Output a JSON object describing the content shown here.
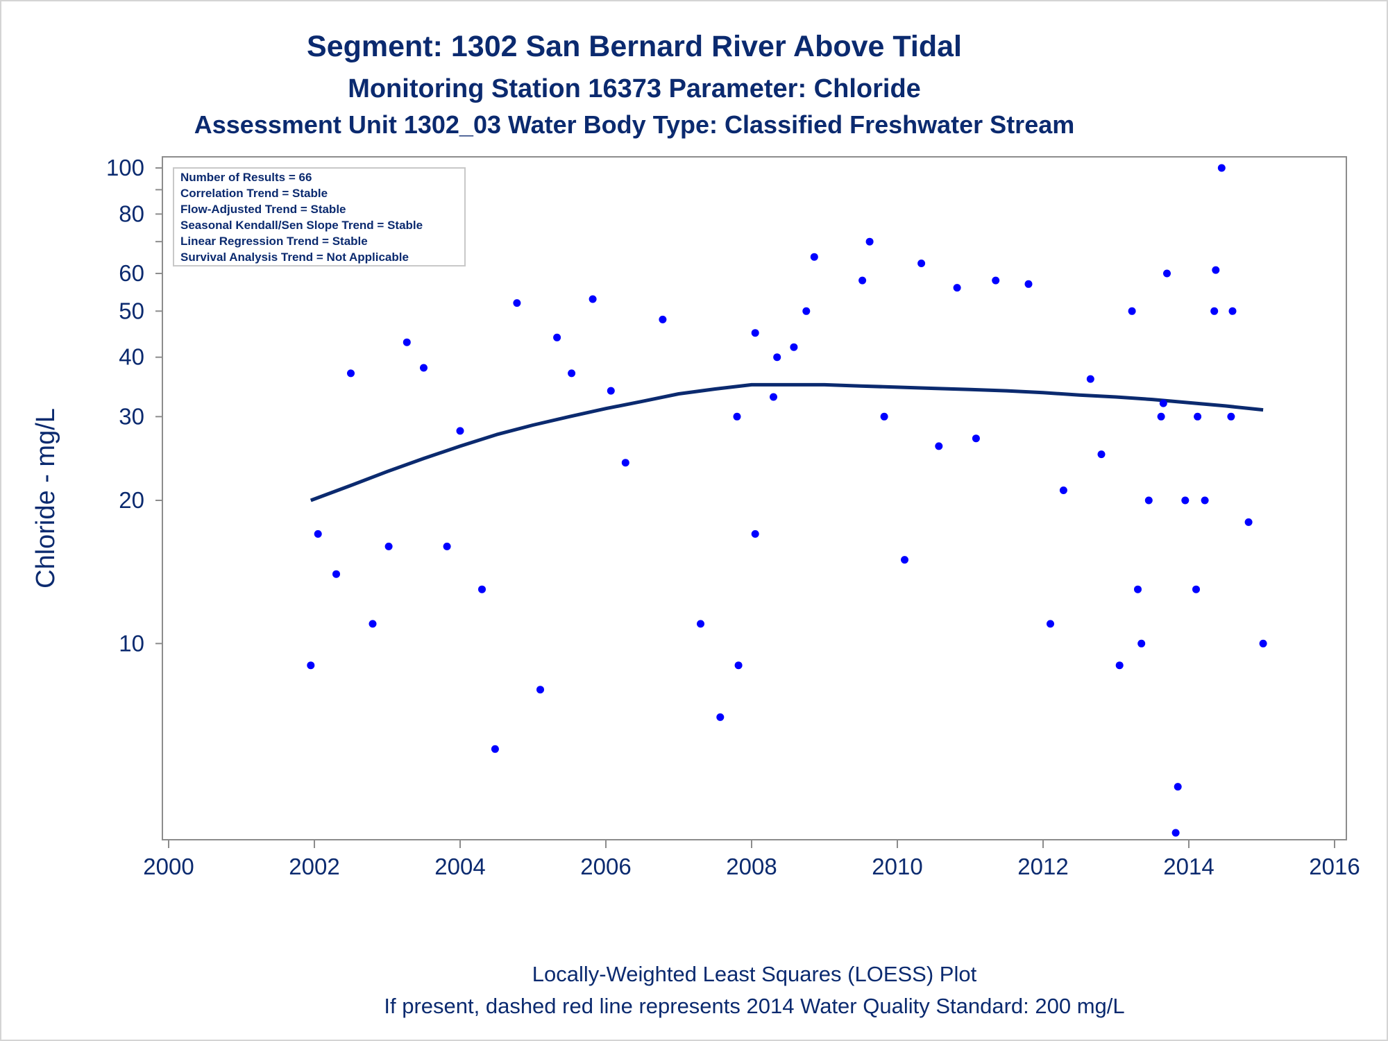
{
  "titles": {
    "line1": "Segment: 1302  San Bernard River Above Tidal",
    "line2": "Monitoring Station 16373 Parameter: Chloride",
    "line3": "Assessment Unit 1302_03   Water Body Type: Classified Freshwater Stream"
  },
  "footnotes": {
    "line1": "Locally-Weighted Least Squares (LOESS) Plot",
    "line2": "If present, dashed red line represents 2014 Water Quality Standard: 200    mg/L"
  },
  "legend_box": [
    "Number of Results = 66",
    "Correlation Trend = Stable",
    "Flow-Adjusted Trend = Stable",
    "Seasonal Kendall/Sen Slope Trend = Stable",
    "Linear Regression Trend = Stable",
    "Survival Analysis Trend = Not Applicable"
  ],
  "colors": {
    "text": "#0b2a6f",
    "points": "#0000ff",
    "loess": "#0b2a6f",
    "frame": "#8c8c8c"
  },
  "chart_data": {
    "type": "scatter",
    "xlabel": "",
    "ylabel": "Chloride - mg/L",
    "xlim": [
      2000,
      2016
    ],
    "ylim": [
      4,
      100
    ],
    "yscale": "log",
    "x_ticks": [
      2000,
      2002,
      2004,
      2006,
      2008,
      2010,
      2012,
      2014,
      2016
    ],
    "y_ticks": [
      10,
      20,
      30,
      40,
      50,
      60,
      80,
      100
    ],
    "y_minor_ticks": [
      70,
      90
    ],
    "grid": false,
    "series": [
      {
        "points": [
          [
            2001.95,
            9
          ],
          [
            2002.05,
            17
          ],
          [
            2002.3,
            14
          ],
          [
            2002.5,
            37
          ],
          [
            2002.8,
            11
          ],
          [
            2003.02,
            16
          ],
          [
            2003.27,
            43
          ],
          [
            2003.5,
            38
          ],
          [
            2003.82,
            16
          ],
          [
            2004.0,
            28
          ],
          [
            2004.3,
            13
          ],
          [
            2004.48,
            6
          ],
          [
            2004.78,
            52
          ],
          [
            2005.1,
            8
          ],
          [
            2005.33,
            44
          ],
          [
            2005.53,
            37
          ],
          [
            2005.82,
            53
          ],
          [
            2006.07,
            34
          ],
          [
            2006.27,
            24
          ],
          [
            2006.78,
            48
          ],
          [
            2007.3,
            11
          ],
          [
            2007.57,
            7
          ],
          [
            2007.8,
            30
          ],
          [
            2007.82,
            9
          ],
          [
            2008.05,
            45
          ],
          [
            2008.05,
            17
          ],
          [
            2008.3,
            33
          ],
          [
            2008.35,
            40
          ],
          [
            2008.58,
            42
          ],
          [
            2008.75,
            50
          ],
          [
            2008.86,
            65
          ],
          [
            2009.52,
            58
          ],
          [
            2009.62,
            70
          ],
          [
            2009.82,
            30
          ],
          [
            2010.1,
            15
          ],
          [
            2010.33,
            63
          ],
          [
            2010.57,
            26
          ],
          [
            2010.82,
            56
          ],
          [
            2011.08,
            27
          ],
          [
            2011.35,
            58
          ],
          [
            2011.8,
            57
          ],
          [
            2012.1,
            11
          ],
          [
            2012.28,
            21
          ],
          [
            2012.65,
            36
          ],
          [
            2012.8,
            25
          ],
          [
            2013.05,
            9
          ],
          [
            2013.22,
            50
          ],
          [
            2013.3,
            13
          ],
          [
            2013.35,
            10
          ],
          [
            2013.45,
            20
          ],
          [
            2013.62,
            30
          ],
          [
            2013.65,
            32
          ],
          [
            2013.7,
            60
          ],
          [
            2013.82,
            4
          ],
          [
            2013.85,
            5
          ],
          [
            2013.95,
            20
          ],
          [
            2014.1,
            13
          ],
          [
            2014.12,
            30
          ],
          [
            2014.22,
            20
          ],
          [
            2014.35,
            50
          ],
          [
            2014.37,
            61
          ],
          [
            2014.45,
            100
          ],
          [
            2014.58,
            30
          ],
          [
            2014.6,
            50
          ],
          [
            2014.82,
            18
          ],
          [
            2015.02,
            10
          ]
        ]
      }
    ],
    "loess": {
      "x": [
        2001.95,
        2002.5,
        2003.0,
        2003.5,
        2004.0,
        2004.5,
        2005.0,
        2005.5,
        2006.0,
        2006.5,
        2007.0,
        2007.5,
        2008.0,
        2008.5,
        2009.0,
        2009.5,
        2010.0,
        2010.5,
        2011.0,
        2011.5,
        2012.0,
        2012.5,
        2013.0,
        2013.5,
        2014.0,
        2014.5,
        2015.02
      ],
      "y": [
        20.0,
        21.5,
        23.0,
        24.5,
        26.0,
        27.5,
        28.8,
        30.0,
        31.2,
        32.3,
        33.5,
        34.3,
        35.0,
        35.0,
        35.0,
        34.8,
        34.6,
        34.4,
        34.2,
        34.0,
        33.7,
        33.3,
        33.0,
        32.6,
        32.1,
        31.6,
        31.0
      ]
    }
  }
}
